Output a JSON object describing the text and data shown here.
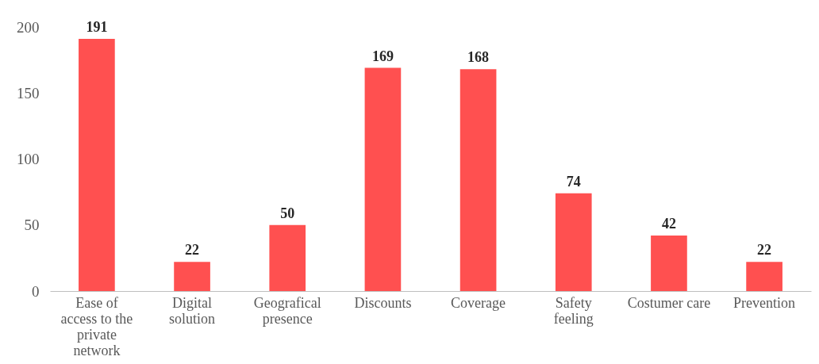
{
  "chart_data": {
    "type": "bar",
    "categories": [
      "Ease of access to the private network",
      "Digital solution",
      "Geografical presence",
      "Discounts",
      "Coverage",
      "Safety feeling",
      "Costumer care",
      "Prevention"
    ],
    "values": [
      191,
      22,
      50,
      169,
      168,
      74,
      42,
      22
    ],
    "color": "#ff5050",
    "ylim": [
      0,
      200
    ],
    "yticks": [
      0,
      50,
      100,
      150,
      200
    ],
    "grid": false,
    "data_labels": true
  }
}
